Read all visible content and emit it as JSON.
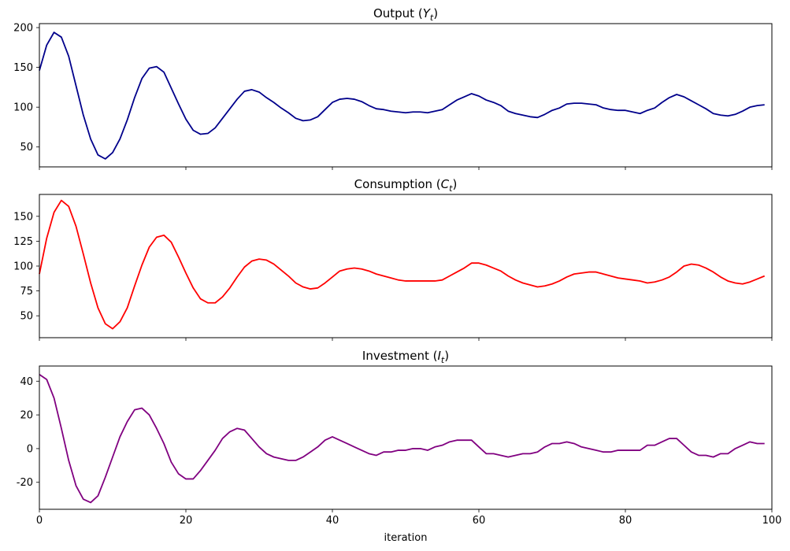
{
  "chart_data": [
    {
      "type": "line",
      "title": "Output (Y_t)",
      "title_main": "Output (",
      "title_var": "Y",
      "title_sub": "t",
      "title_end": ")",
      "xlabel": "",
      "ylabel": "",
      "xlim": [
        0,
        100
      ],
      "ylim": [
        25,
        205
      ],
      "xticks": [
        0,
        20,
        40,
        60,
        80,
        100
      ],
      "yticks": [
        50,
        100,
        150,
        200
      ],
      "show_xticklabels": false,
      "grid": false,
      "series": [
        {
          "color": "#00008b",
          "x": [
            0,
            1,
            2,
            3,
            4,
            5,
            6,
            7,
            8,
            9,
            10,
            11,
            12,
            13,
            14,
            15,
            16,
            17,
            18,
            19,
            20,
            21,
            22,
            23,
            24,
            25,
            26,
            27,
            28,
            29,
            30,
            31,
            32,
            33,
            34,
            35,
            36,
            37,
            38,
            39,
            40,
            41,
            42,
            43,
            44,
            45,
            46,
            47,
            48,
            49,
            50,
            51,
            52,
            53,
            54,
            55,
            56,
            57,
            58,
            59,
            60,
            61,
            62,
            63,
            64,
            65,
            66,
            67,
            68,
            69,
            70,
            71,
            72,
            73,
            74,
            75,
            76,
            77,
            78,
            79,
            80,
            81,
            82,
            83,
            84,
            85,
            86,
            87,
            88,
            89,
            90,
            91,
            92,
            93,
            94,
            95,
            96,
            97,
            98,
            99
          ],
          "values": [
            146,
            178,
            194,
            188,
            164,
            127,
            90,
            60,
            40,
            35,
            43,
            60,
            84,
            112,
            136,
            149,
            151,
            144,
            124,
            104,
            85,
            71,
            66,
            67,
            74,
            86,
            98,
            110,
            120,
            122,
            119,
            112,
            106,
            99,
            93,
            86,
            83,
            84,
            88,
            97,
            106,
            110,
            111,
            110,
            107,
            102,
            98,
            97,
            95,
            94,
            93,
            94,
            94,
            93,
            95,
            97,
            103,
            109,
            113,
            117,
            114,
            109,
            106,
            102,
            95,
            92,
            90,
            88,
            87,
            91,
            96,
            99,
            104,
            105,
            105,
            104,
            103,
            99,
            97,
            96,
            96,
            94,
            92,
            96,
            99,
            106,
            112,
            116,
            113,
            108,
            103,
            98,
            92,
            90,
            89,
            91,
            95,
            100,
            102,
            103
          ]
        }
      ]
    },
    {
      "type": "line",
      "title": "Consumption (C_t)",
      "title_main": "Consumption (",
      "title_var": "C",
      "title_sub": "t",
      "title_end": ")",
      "xlabel": "",
      "ylabel": "",
      "xlim": [
        0,
        100
      ],
      "ylim": [
        28,
        172
      ],
      "xticks": [
        0,
        20,
        40,
        60,
        80,
        100
      ],
      "yticks": [
        50,
        75,
        100,
        125,
        150
      ],
      "show_xticklabels": false,
      "grid": false,
      "series": [
        {
          "color": "#ff0000",
          "x": [
            0,
            1,
            2,
            3,
            4,
            5,
            6,
            7,
            8,
            9,
            10,
            11,
            12,
            13,
            14,
            15,
            16,
            17,
            18,
            19,
            20,
            21,
            22,
            23,
            24,
            25,
            26,
            27,
            28,
            29,
            30,
            31,
            32,
            33,
            34,
            35,
            36,
            37,
            38,
            39,
            40,
            41,
            42,
            43,
            44,
            45,
            46,
            47,
            48,
            49,
            50,
            51,
            52,
            53,
            54,
            55,
            56,
            57,
            58,
            59,
            60,
            61,
            62,
            63,
            64,
            65,
            66,
            67,
            68,
            69,
            70,
            71,
            72,
            73,
            74,
            75,
            76,
            77,
            78,
            79,
            80,
            81,
            82,
            83,
            84,
            85,
            86,
            87,
            88,
            89,
            90,
            91,
            92,
            93,
            94,
            95,
            96,
            97,
            98,
            99
          ],
          "values": [
            92,
            128,
            154,
            166,
            160,
            140,
            112,
            83,
            58,
            42,
            37,
            44,
            58,
            80,
            101,
            119,
            129,
            131,
            124,
            109,
            93,
            78,
            67,
            63,
            63,
            69,
            78,
            89,
            99,
            105,
            107,
            106,
            102,
            96,
            90,
            83,
            79,
            77,
            78,
            83,
            89,
            95,
            97,
            98,
            97,
            95,
            92,
            90,
            88,
            86,
            85,
            85,
            85,
            85,
            85,
            86,
            90,
            94,
            98,
            103,
            103,
            101,
            98,
            95,
            90,
            86,
            83,
            81,
            79,
            80,
            82,
            85,
            89,
            92,
            93,
            94,
            94,
            92,
            90,
            88,
            87,
            86,
            85,
            83,
            84,
            86,
            89,
            94,
            100,
            102,
            101,
            98,
            94,
            89,
            85,
            83,
            82,
            84,
            87,
            90
          ]
        }
      ]
    },
    {
      "type": "line",
      "title": "Investment (I_t)",
      "title_main": "Investment (",
      "title_var": "I",
      "title_sub": "t",
      "title_end": ")",
      "xlabel": "iteration",
      "ylabel": "",
      "xlim": [
        0,
        100
      ],
      "ylim": [
        -36,
        49
      ],
      "xticks": [
        0,
        20,
        40,
        60,
        80,
        100
      ],
      "yticks": [
        -20,
        0,
        20,
        40
      ],
      "show_xticklabels": true,
      "grid": false,
      "series": [
        {
          "color": "#800080",
          "x": [
            0,
            1,
            2,
            3,
            4,
            5,
            6,
            7,
            8,
            9,
            10,
            11,
            12,
            13,
            14,
            15,
            16,
            17,
            18,
            19,
            20,
            21,
            22,
            23,
            24,
            25,
            26,
            27,
            28,
            29,
            30,
            31,
            32,
            33,
            34,
            35,
            36,
            37,
            38,
            39,
            40,
            41,
            42,
            43,
            44,
            45,
            46,
            47,
            48,
            49,
            50,
            51,
            52,
            53,
            54,
            55,
            56,
            57,
            58,
            59,
            60,
            61,
            62,
            63,
            64,
            65,
            66,
            67,
            68,
            69,
            70,
            71,
            72,
            73,
            74,
            75,
            76,
            77,
            78,
            79,
            80,
            81,
            82,
            83,
            84,
            85,
            86,
            87,
            88,
            89,
            90,
            91,
            92,
            93,
            94,
            95,
            96,
            97,
            98,
            99
          ],
          "values": [
            44,
            41,
            30,
            12,
            -7,
            -22,
            -30,
            -32,
            -28,
            -17,
            -5,
            7,
            16,
            23,
            24,
            20,
            12,
            3,
            -8,
            -15,
            -18,
            -18,
            -13,
            -7,
            -1,
            6,
            10,
            12,
            11,
            6,
            1,
            -3,
            -5,
            -6,
            -7,
            -7,
            -5,
            -2,
            1,
            5,
            7,
            5,
            3,
            1,
            -1,
            -3,
            -4,
            -2,
            -2,
            -1,
            -1,
            0,
            0,
            -1,
            1,
            2,
            4,
            5,
            5,
            5,
            1,
            -3,
            -3,
            -4,
            -5,
            -4,
            -3,
            -3,
            -2,
            1,
            3,
            3,
            4,
            3,
            1,
            0,
            -1,
            -2,
            -2,
            -1,
            -1,
            -1,
            -1,
            2,
            2,
            4,
            6,
            6,
            2,
            -2,
            -4,
            -4,
            -5,
            -3,
            -3,
            0,
            2,
            4,
            3,
            3
          ]
        }
      ]
    }
  ]
}
